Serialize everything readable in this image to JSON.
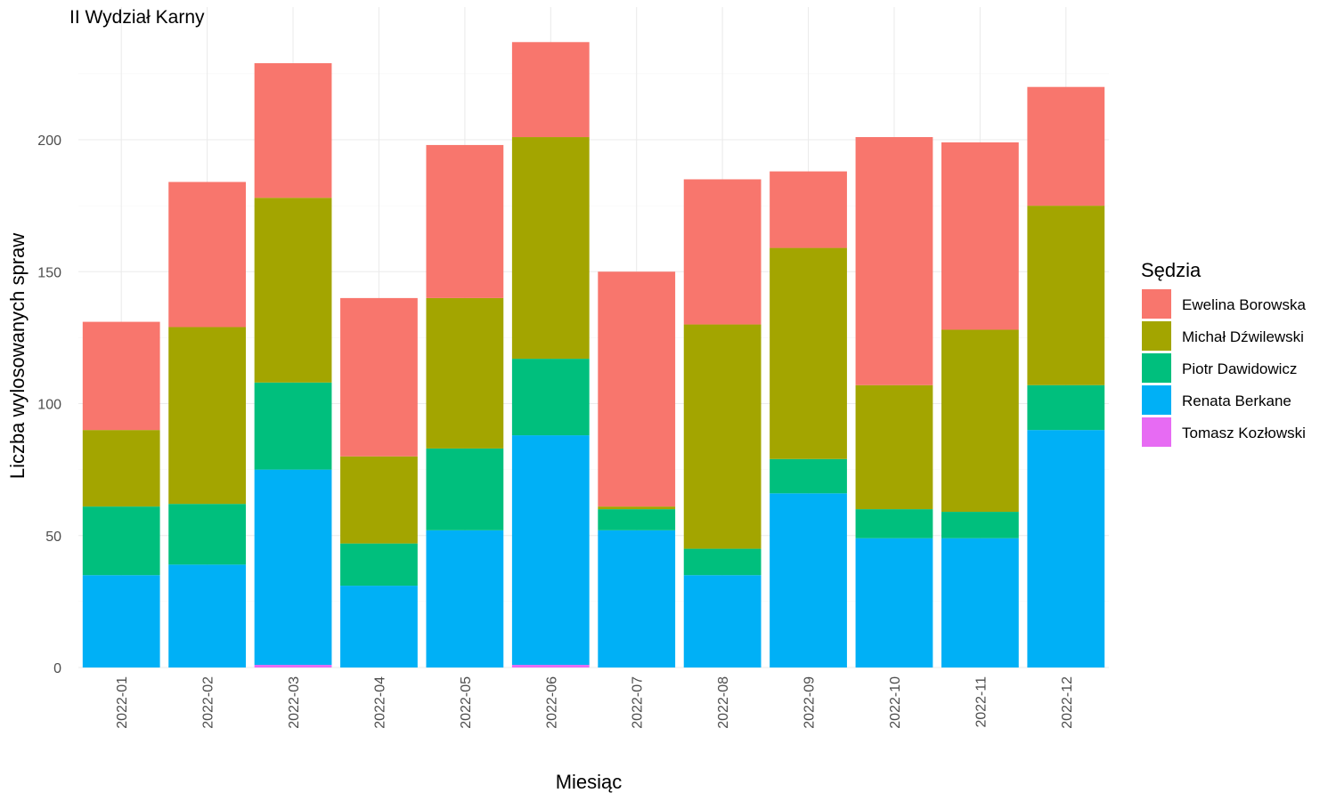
{
  "chart_data": {
    "type": "bar",
    "stacked": true,
    "title": "II Wydział Karny",
    "xlabel": "Miesiąc",
    "ylabel": "Liczba wylosowanych spraw",
    "ylim": [
      0,
      240
    ],
    "yticks": [
      0,
      50,
      100,
      150,
      200
    ],
    "grid": true,
    "legend_position": "right",
    "legend_title": "Sędzia",
    "categories": [
      "2022-01",
      "2022-02",
      "2022-03",
      "2022-04",
      "2022-05",
      "2022-06",
      "2022-07",
      "2022-08",
      "2022-09",
      "2022-10",
      "2022-11",
      "2022-12"
    ],
    "series": [
      {
        "name": "Tomasz Kozłowski",
        "color": "#E76BF3",
        "values": [
          0,
          0,
          1,
          0,
          0,
          1,
          0,
          0,
          0,
          0,
          0,
          0
        ]
      },
      {
        "name": "Renata Berkane",
        "color": "#00B0F6",
        "values": [
          35,
          39,
          74,
          31,
          52,
          87,
          52,
          35,
          66,
          49,
          49,
          90
        ]
      },
      {
        "name": "Piotr Dawidowicz",
        "color": "#00BF7D",
        "values": [
          26,
          23,
          33,
          16,
          31,
          29,
          8,
          10,
          13,
          11,
          10,
          17
        ]
      },
      {
        "name": "Michał Dźwilewski",
        "color": "#A3A500",
        "values": [
          29,
          67,
          70,
          33,
          57,
          84,
          1,
          85,
          80,
          47,
          69,
          68
        ]
      },
      {
        "name": "Ewelina Borowska",
        "color": "#F8766D",
        "values": [
          41,
          55,
          51,
          60,
          58,
          36,
          89,
          55,
          29,
          94,
          71,
          45
        ]
      }
    ],
    "legend_order": [
      "Ewelina Borowska",
      "Michał Dźwilewski",
      "Piotr Dawidowicz",
      "Renata Berkane",
      "Tomasz Kozłowski"
    ]
  }
}
